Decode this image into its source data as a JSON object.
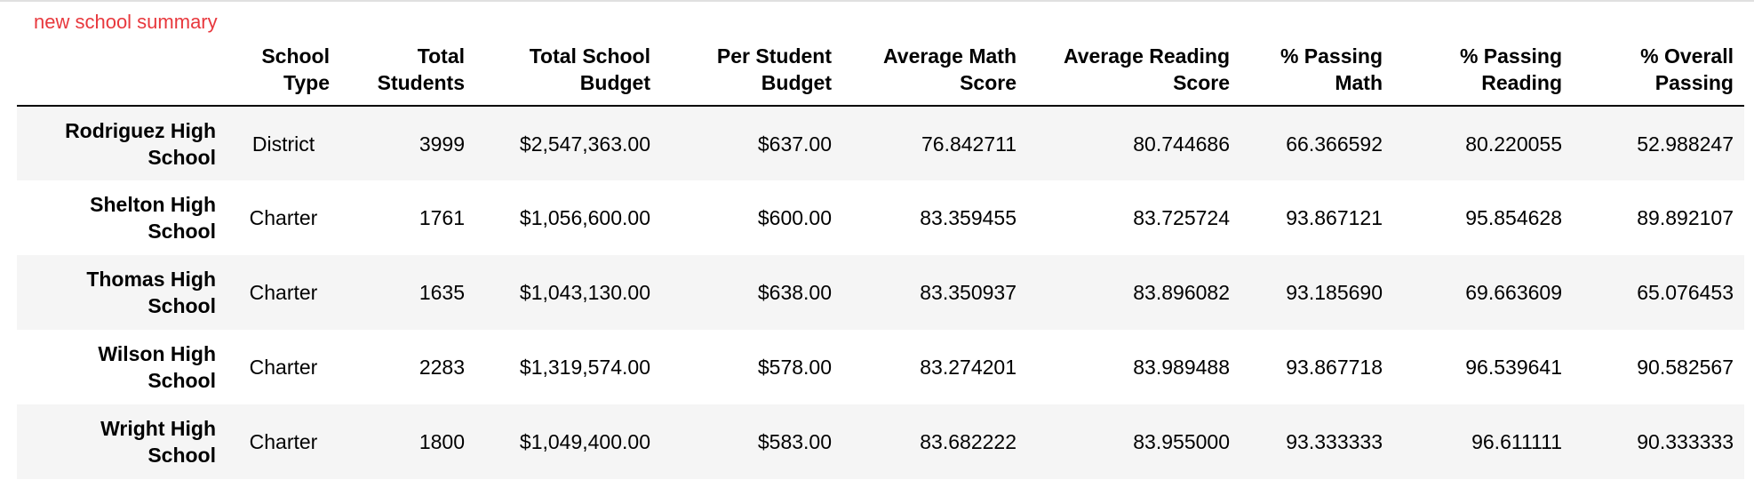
{
  "caption": "new school summary",
  "columns": [
    "",
    "School Type",
    "Total Students",
    "Total School Budget",
    "Per Student Budget",
    "Average Math Score",
    "Average Reading Score",
    "% Passing Math",
    "% Passing Reading",
    "% Overall Passing"
  ],
  "rows": [
    {
      "school": "Rodriguez High School",
      "type": "District",
      "students": "3999",
      "budget": "$2,547,363.00",
      "per_student": "$637.00",
      "avg_math": "76.842711",
      "avg_reading": "80.744686",
      "pass_math": "66.366592",
      "pass_reading": "80.220055",
      "overall": "52.988247"
    },
    {
      "school": "Shelton High School",
      "type": "Charter",
      "students": "1761",
      "budget": "$1,056,600.00",
      "per_student": "$600.00",
      "avg_math": "83.359455",
      "avg_reading": "83.725724",
      "pass_math": "93.867121",
      "pass_reading": "95.854628",
      "overall": "89.892107"
    },
    {
      "school": "Thomas High School",
      "type": "Charter",
      "students": "1635",
      "budget": "$1,043,130.00",
      "per_student": "$638.00",
      "avg_math": "83.350937",
      "avg_reading": "83.896082",
      "pass_math": "93.185690",
      "pass_reading": "69.663609",
      "overall": "65.076453"
    },
    {
      "school": "Wilson High School",
      "type": "Charter",
      "students": "2283",
      "budget": "$1,319,574.00",
      "per_student": "$578.00",
      "avg_math": "83.274201",
      "avg_reading": "83.989488",
      "pass_math": "93.867718",
      "pass_reading": "96.539641",
      "overall": "90.582567"
    },
    {
      "school": "Wright High School",
      "type": "Charter",
      "students": "1800",
      "budget": "$1,049,400.00",
      "per_student": "$583.00",
      "avg_math": "83.682222",
      "avg_reading": "83.955000",
      "pass_math": "93.333333",
      "pass_reading": "96.611111",
      "overall": "90.333333"
    }
  ],
  "colors": {
    "caption": "#e8383d",
    "stripe": "#f5f5f5"
  }
}
